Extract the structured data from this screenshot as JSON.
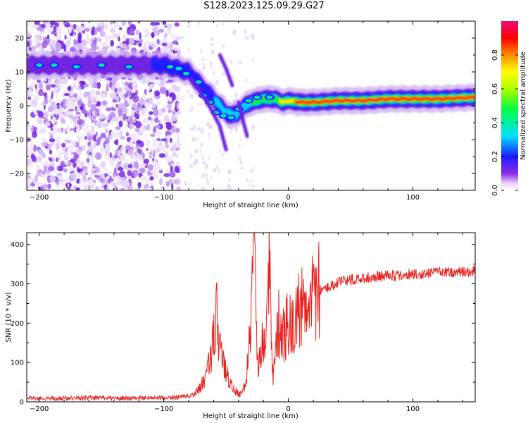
{
  "title": "S128.2023.125.09.29.G27",
  "colors": {
    "snr_line": "#e8211c",
    "frame": "#000000"
  },
  "chart_data": [
    {
      "type": "heatmap",
      "xlabel": "Height of straight line (km)",
      "ylabel": "Frequency (Hz)",
      "xlim": [
        -210,
        150
      ],
      "ylim": [
        -25,
        25
      ],
      "xticks": [
        -200,
        -100,
        0,
        100
      ],
      "yticks": [
        -20,
        -10,
        0,
        10,
        20
      ],
      "colorbar": {
        "label": "Normalized spectral amplitude",
        "range": [
          0,
          1
        ],
        "ticks": [
          0.0,
          0.2,
          0.4,
          0.6,
          0.8
        ],
        "colormap": "rainbow (white-lavender at 0, violet, blue, cyan, green, yellow, orange, red, magenta at 1)"
      },
      "ridge": {
        "x": [
          -210,
          -180,
          -150,
          -120,
          -100,
          -90,
          -80,
          -70,
          -60,
          -50,
          -45,
          -40,
          -35,
          -30,
          -20,
          -10,
          -5,
          0,
          10,
          20,
          40,
          60,
          80,
          100,
          120,
          150
        ],
        "freq": [
          12,
          12,
          12,
          12,
          12,
          11,
          10,
          6,
          2,
          -2,
          -3,
          -2,
          0,
          1,
          2,
          2,
          1,
          1.5,
          1,
          1,
          1.5,
          1.5,
          2,
          2,
          2,
          2.5
        ]
      },
      "noise_region_x": [
        -210,
        -88
      ]
    },
    {
      "type": "line",
      "xlabel": "Height of straight line (km)",
      "ylabel": "SNR (10 * v/v)",
      "xlim": [
        -210,
        150
      ],
      "ylim": [
        0,
        430
      ],
      "xticks": [
        -200,
        -100,
        0,
        100
      ],
      "yticks": [
        0,
        100,
        200,
        300,
        400
      ],
      "series": [
        {
          "x": [
            -210,
            -190,
            -170,
            -150,
            -130,
            -110,
            -100,
            -90,
            -80,
            -75,
            -70,
            -65,
            -60,
            -57,
            -55,
            -52,
            -50,
            -47,
            -45,
            -42,
            -40,
            -37,
            -35,
            -32,
            -30,
            -28,
            -26,
            -25,
            -24,
            -22,
            -20,
            -18,
            -16,
            -15,
            -14,
            -13,
            -12,
            -10,
            -8,
            -5,
            -3,
            0,
            3,
            5,
            10,
            15,
            20,
            25,
            30,
            35,
            40,
            50,
            60,
            70,
            80,
            90,
            100,
            110,
            120,
            130,
            140,
            150
          ],
          "values": [
            10,
            9,
            10,
            10,
            9,
            10,
            11,
            12,
            14,
            20,
            40,
            80,
            150,
            225,
            140,
            90,
            75,
            50,
            35,
            28,
            20,
            18,
            45,
            120,
            220,
            380,
            260,
            110,
            95,
            130,
            150,
            120,
            260,
            380,
            200,
            100,
            60,
            150,
            200,
            190,
            175,
            200,
            205,
            215,
            240,
            255,
            270,
            285,
            290,
            295,
            305,
            310,
            315,
            318,
            320,
            322,
            325,
            325,
            328,
            330,
            330,
            332
          ]
        }
      ]
    }
  ]
}
